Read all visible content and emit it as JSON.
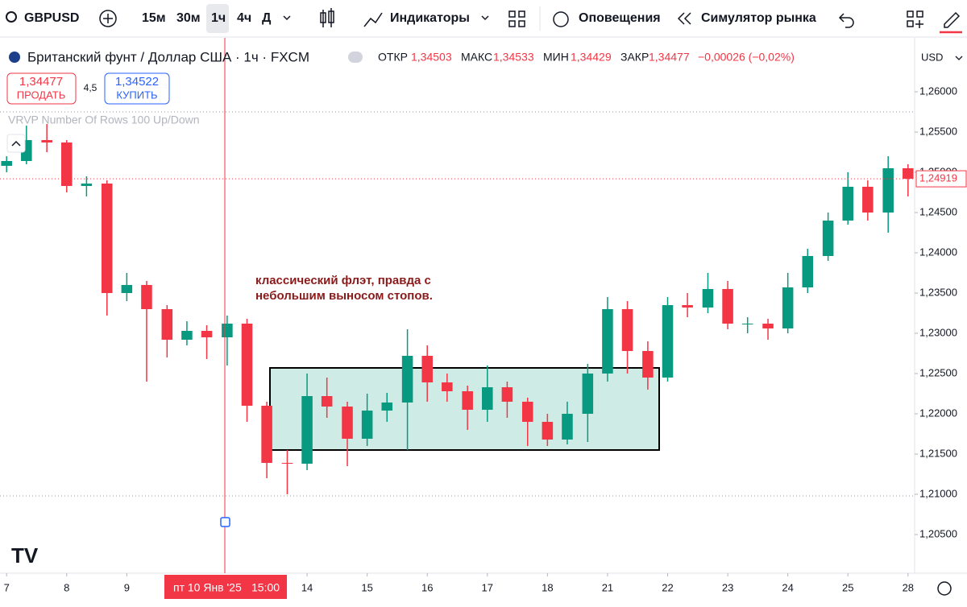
{
  "ui": {
    "symbol": "GBPUSD",
    "intervals": [
      "15м",
      "30м",
      "1ч",
      "4ч",
      "Д"
    ],
    "indicators": "Индикаторы",
    "alerts": "Оповещения",
    "simulator": "Симулятор рынка",
    "instrument": "Британский фунт / Доллар США · 1ч · FXCM",
    "ohlc": [
      "ОТКР",
      "1,34503",
      "МАКС",
      "1,34533",
      "МИН",
      "1,34429",
      "ЗАКР",
      "1,34477",
      "−0,00026 (−0,02%)"
    ],
    "sell_price": "1,34477",
    "sell": "ПРОДАТЬ",
    "spread": "4,5",
    "buy_price": "1,34522",
    "buy": "КУПИТЬ",
    "currency": "USD",
    "indicator": "VRVP Number Of Rows 100 Up/Down",
    "crosshair_date": "пт 10 Янв '25",
    "crosshair_time": "15:00"
  },
  "chart_data": {
    "type": "candlestick",
    "annotation": [
      "классический флэт, правда с",
      "небольшим выносом стопов."
    ],
    "up_color": "#089981",
    "down_color": "#f23645",
    "x": [
      0,
      0.33,
      0.67,
      1,
      1.33,
      1.67,
      2,
      2.33,
      2.67,
      3,
      3.33,
      3.67,
      4,
      4.33,
      4.67,
      5,
      5.33,
      5.67,
      6,
      6.33,
      6.67,
      7,
      7.33,
      7.67,
      8,
      8.33,
      8.67,
      9,
      9.33,
      9.67,
      10,
      10.33,
      10.67,
      11,
      11.33,
      11.67,
      12,
      12.33,
      12.67,
      13,
      13.33,
      13.67,
      14,
      14.33,
      14.67,
      15
    ],
    "open": [
      1.2508,
      1.2514,
      1.254,
      1.2537,
      1.2483,
      1.2486,
      1.235,
      1.236,
      1.233,
      1.2292,
      1.2303,
      1.2295,
      1.2312,
      1.221,
      1.2139,
      1.2138,
      1.2222,
      1.2209,
      1.2169,
      1.2204,
      1.2214,
      1.2272,
      1.2239,
      1.2228,
      1.2205,
      1.2233,
      1.2215,
      1.219,
      1.2168,
      1.22,
      1.225,
      1.233,
      1.2278,
      1.2245,
      1.2335,
      1.2332,
      1.2355,
      1.2312,
      1.2312,
      1.2306,
      1.2357,
      1.2396,
      1.244,
      1.2482,
      1.245,
      1.2505
    ],
    "high": [
      1.252,
      1.2558,
      1.256,
      1.254,
      1.2495,
      1.249,
      1.2375,
      1.2365,
      1.2335,
      1.2315,
      1.231,
      1.2322,
      1.2318,
      1.2215,
      1.2155,
      1.225,
      1.2245,
      1.2215,
      1.2225,
      1.2226,
      1.2305,
      1.2285,
      1.225,
      1.2235,
      1.226,
      1.224,
      1.222,
      1.22,
      1.2215,
      1.2262,
      1.2345,
      1.234,
      1.229,
      1.2345,
      1.235,
      1.2375,
      1.2365,
      1.232,
      1.2318,
      1.2375,
      1.2405,
      1.245,
      1.25,
      1.249,
      1.252,
      1.251
    ],
    "low": [
      1.25,
      1.251,
      1.2525,
      1.2475,
      1.247,
      1.2322,
      1.234,
      1.224,
      1.227,
      1.2285,
      1.2268,
      1.226,
      1.219,
      1.212,
      1.21,
      1.213,
      1.2195,
      1.2135,
      1.216,
      1.219,
      1.2155,
      1.2215,
      1.2215,
      1.218,
      1.219,
      1.2195,
      1.216,
      1.216,
      1.2162,
      1.2165,
      1.224,
      1.225,
      1.223,
      1.224,
      1.232,
      1.2325,
      1.2305,
      1.23,
      1.2292,
      1.23,
      1.235,
      1.239,
      1.2435,
      1.244,
      1.2425,
      1.247
    ],
    "close": [
      1.2514,
      1.254,
      1.2537,
      1.2483,
      1.2486,
      1.235,
      1.236,
      1.233,
      1.2292,
      1.2303,
      1.2295,
      1.2312,
      1.221,
      1.2139,
      1.2138,
      1.2222,
      1.2209,
      1.2169,
      1.2204,
      1.2214,
      1.2272,
      1.2239,
      1.2228,
      1.2205,
      1.2233,
      1.2215,
      1.219,
      1.2168,
      1.22,
      1.225,
      1.233,
      1.2278,
      1.2245,
      1.2335,
      1.2332,
      1.2355,
      1.2312,
      1.2312,
      1.2306,
      1.2357,
      1.2396,
      1.244,
      1.2482,
      1.245,
      1.2505,
      1.2492
    ],
    "last_price": {
      "value": 1.24919,
      "label": "1,24919"
    },
    "xlim": [
      -0.11,
      15.11
    ],
    "xticks": [
      {
        "value": 0,
        "label": "7"
      },
      {
        "value": 1,
        "label": "8"
      },
      {
        "value": 2,
        "label": "9"
      },
      {
        "value": 5,
        "label": "14"
      },
      {
        "value": 6,
        "label": "15"
      },
      {
        "value": 7,
        "label": "16"
      },
      {
        "value": 8,
        "label": "17"
      },
      {
        "value": 9,
        "label": "18"
      },
      {
        "value": 10,
        "label": "21"
      },
      {
        "value": 11,
        "label": "22"
      },
      {
        "value": 12,
        "label": "23"
      },
      {
        "value": 13,
        "label": "24"
      },
      {
        "value": 14,
        "label": "25"
      },
      {
        "value": 15,
        "label": "28"
      }
    ],
    "ylim": [
      1.2004,
      1.2666
    ],
    "yticks": [
      {
        "value": 1.205,
        "label": "1,20500"
      },
      {
        "value": 1.21,
        "label": "1,21000"
      },
      {
        "value": 1.215,
        "label": "1,21500"
      },
      {
        "value": 1.22,
        "label": "1,22000"
      },
      {
        "value": 1.225,
        "label": "1,22500"
      },
      {
        "value": 1.23,
        "label": "1,23000"
      },
      {
        "value": 1.235,
        "label": "1,23500"
      },
      {
        "value": 1.24,
        "label": "1,24000"
      },
      {
        "value": 1.245,
        "label": "1,24500"
      },
      {
        "value": 1.25,
        "label": "1,25000"
      },
      {
        "value": 1.255,
        "label": "1,25500"
      },
      {
        "value": 1.26,
        "label": "1,26000"
      }
    ]
  }
}
